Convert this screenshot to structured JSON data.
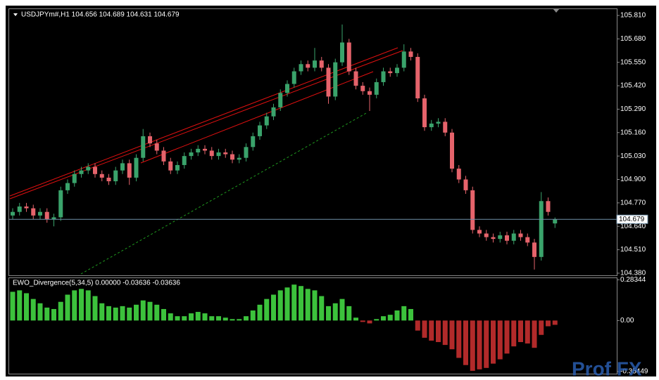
{
  "chart_data": {
    "type": "candlestick",
    "title": "USDJPYm#,H1  104.656 104.689 104.631 104.679",
    "up_color": "#3aa36b",
    "down_color": "#e5636b",
    "open": [
      104.7,
      104.72,
      104.75,
      104.74,
      104.7,
      104.72,
      104.68,
      104.69,
      104.84,
      104.88,
      104.93,
      104.95,
      104.97,
      104.93,
      104.91,
      104.89,
      104.95,
      104.99,
      104.91,
      105.02,
      105.14,
      105.1,
      105.06,
      105.0,
      104.95,
      104.98,
      105.03,
      105.05,
      105.07,
      105.06,
      105.03,
      105.05,
      105.04,
      105.01,
      105.02,
      105.08,
      105.14,
      105.2,
      105.25,
      105.3,
      105.38,
      105.43,
      105.5,
      105.54,
      105.52,
      105.56,
      105.52,
      105.36,
      105.55,
      105.66,
      105.5,
      105.42,
      105.39,
      105.37,
      105.44,
      105.5,
      105.49,
      105.52,
      105.61,
      105.58,
      105.35,
      105.19,
      105.21,
      105.22,
      105.16,
      104.96,
      104.9,
      104.84,
      104.62,
      104.6,
      104.58,
      104.57,
      104.59,
      104.56,
      104.6,
      104.58,
      104.55,
      104.47,
      104.78,
      104.656
    ],
    "high": [
      104.74,
      104.77,
      104.77,
      104.76,
      104.74,
      104.74,
      104.71,
      104.86,
      104.9,
      104.95,
      104.97,
      104.99,
      104.99,
      104.95,
      104.93,
      104.97,
      105.01,
      105.01,
      105.04,
      105.18,
      105.16,
      105.12,
      105.08,
      105.02,
      105.0,
      105.05,
      105.07,
      105.09,
      105.09,
      105.08,
      105.07,
      105.07,
      105.06,
      105.04,
      105.1,
      105.16,
      105.22,
      105.27,
      105.32,
      105.4,
      105.45,
      105.52,
      105.56,
      105.56,
      105.63,
      105.58,
      105.54,
      105.57,
      105.76,
      105.68,
      105.52,
      105.44,
      105.41,
      105.46,
      105.52,
      105.52,
      105.54,
      105.65,
      105.63,
      105.6,
      105.37,
      105.23,
      105.24,
      105.24,
      105.18,
      104.98,
      104.92,
      104.86,
      104.64,
      104.62,
      104.6,
      104.61,
      104.61,
      104.62,
      104.62,
      104.6,
      104.57,
      104.83,
      104.8,
      104.689
    ],
    "low": [
      104.68,
      104.7,
      104.72,
      104.68,
      104.68,
      104.66,
      104.64,
      104.67,
      104.82,
      104.86,
      104.91,
      104.93,
      104.91,
      104.89,
      104.87,
      104.87,
      104.93,
      104.87,
      104.89,
      105.0,
      105.08,
      105.04,
      104.98,
      104.93,
      104.93,
      104.96,
      105.01,
      105.03,
      105.04,
      105.01,
      105.01,
      105.02,
      104.99,
      104.99,
      105.0,
      105.06,
      105.12,
      105.18,
      105.23,
      105.28,
      105.36,
      105.41,
      105.48,
      105.5,
      105.5,
      105.5,
      105.32,
      105.34,
      105.53,
      105.48,
      105.4,
      105.37,
      105.28,
      105.35,
      105.42,
      105.47,
      105.47,
      105.5,
      105.56,
      105.33,
      105.17,
      105.17,
      105.19,
      105.14,
      104.94,
      104.88,
      104.82,
      104.6,
      104.58,
      104.56,
      104.55,
      104.55,
      104.54,
      104.54,
      104.56,
      104.53,
      104.4,
      104.45,
      104.7,
      104.631
    ],
    "close": [
      104.72,
      104.75,
      104.74,
      104.7,
      104.72,
      104.68,
      104.69,
      104.84,
      104.88,
      104.93,
      104.95,
      104.97,
      104.93,
      104.91,
      104.89,
      104.95,
      104.99,
      104.91,
      105.02,
      105.14,
      105.1,
      105.06,
      105.0,
      104.95,
      104.98,
      105.03,
      105.05,
      105.07,
      105.06,
      105.03,
      105.05,
      105.04,
      105.01,
      105.02,
      105.08,
      105.14,
      105.2,
      105.25,
      105.3,
      105.38,
      105.43,
      105.5,
      105.54,
      105.52,
      105.56,
      105.52,
      105.36,
      105.55,
      105.66,
      105.5,
      105.42,
      105.39,
      105.37,
      105.44,
      105.5,
      105.49,
      105.52,
      105.61,
      105.58,
      105.35,
      105.19,
      105.21,
      105.22,
      105.16,
      104.96,
      104.9,
      104.84,
      104.62,
      104.6,
      104.58,
      104.57,
      104.59,
      104.56,
      104.6,
      104.58,
      104.55,
      104.47,
      104.78,
      104.72,
      104.679
    ],
    "ylim": [
      104.368,
      105.849
    ],
    "yticks": [
      {
        "value": 105.81,
        "label": "105.810"
      },
      {
        "value": 105.68,
        "label": "105.680"
      },
      {
        "value": 105.55,
        "label": "105.550"
      },
      {
        "value": 105.42,
        "label": "105.420"
      },
      {
        "value": 105.29,
        "label": "105.290"
      },
      {
        "value": 105.16,
        "label": "105.160"
      },
      {
        "value": 105.03,
        "label": "105.030"
      },
      {
        "value": 104.9,
        "label": "104.900"
      },
      {
        "value": 104.77,
        "label": "104.770"
      },
      {
        "value": 104.64,
        "label": "104.640"
      },
      {
        "value": 104.51,
        "label": "104.510"
      },
      {
        "value": 104.38,
        "label": "104.380"
      }
    ],
    "current_price": {
      "value": 104.679,
      "label": "104.679"
    },
    "indicator": {
      "type": "histogram",
      "title": "EWO_Divergence(5,34,5) 0.00000 -0.03636 -0.03636",
      "up_color": "#3cc23c",
      "down_color": "#b22a2a",
      "values": [
        0.2,
        0.21,
        0.19,
        0.15,
        0.12,
        0.09,
        0.08,
        0.13,
        0.18,
        0.21,
        0.22,
        0.21,
        0.17,
        0.12,
        0.1,
        0.09,
        0.1,
        0.09,
        0.11,
        0.14,
        0.13,
        0.11,
        0.08,
        0.05,
        0.03,
        0.03,
        0.05,
        0.06,
        0.05,
        0.03,
        0.03,
        0.02,
        0.01,
        0.01,
        0.03,
        0.07,
        0.11,
        0.15,
        0.18,
        0.21,
        0.23,
        0.25,
        0.24,
        0.22,
        0.21,
        0.17,
        0.1,
        0.12,
        0.15,
        0.1,
        0.02,
        -0.01,
        -0.02,
        0.01,
        0.03,
        0.04,
        0.07,
        0.1,
        0.08,
        -0.07,
        -0.12,
        -0.14,
        -0.15,
        -0.17,
        -0.2,
        -0.26,
        -0.31,
        -0.35,
        -0.34,
        -0.33,
        -0.3,
        -0.27,
        -0.23,
        -0.18,
        -0.15,
        -0.16,
        -0.19,
        -0.1,
        -0.04,
        -0.03
      ],
      "ylim": [
        -0.37,
        0.29
      ],
      "yticks": [
        0.28344,
        {
          "value": 0,
          "label": "0.00"
        },
        -0.35449
      ]
    },
    "watermark": "Prof FX"
  }
}
